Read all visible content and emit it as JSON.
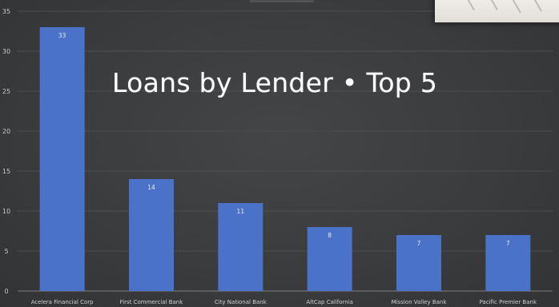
{
  "chart_data": {
    "type": "bar",
    "title": "Loans by Lender • Top 5",
    "categories": [
      "Acelera Financial Corp",
      "First Commercial Bank",
      "City National Bank",
      "AltCap California",
      "Mission Valley Bank",
      "Pacific Premier Bank"
    ],
    "values": [
      33,
      14,
      11,
      8,
      7,
      7
    ],
    "ylim": [
      0,
      35
    ],
    "yticks": [
      0,
      5,
      10,
      15,
      20,
      25,
      30,
      35
    ],
    "grid": true,
    "bar_color": "#4a72c9",
    "background": "#3b3c3e"
  }
}
